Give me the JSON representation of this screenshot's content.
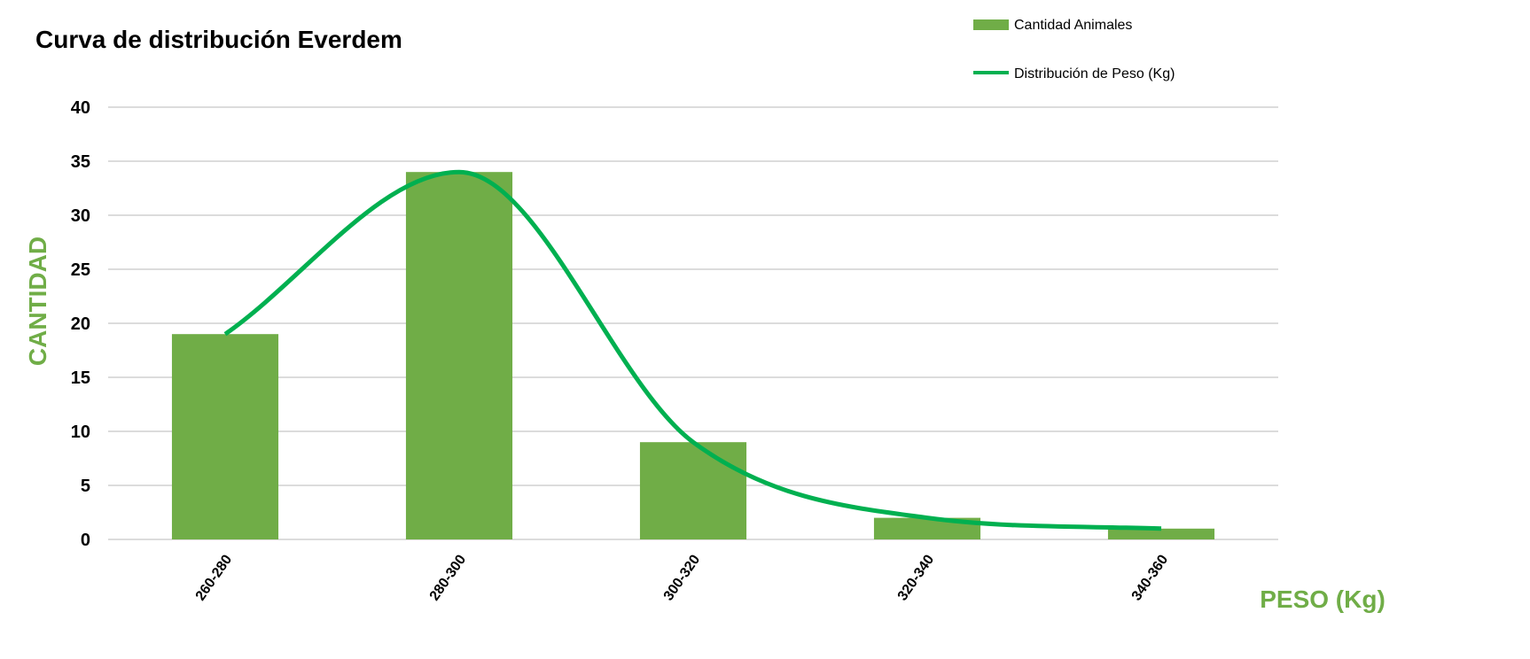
{
  "chart_data": {
    "type": "bar",
    "title": "Curva de distribución Everdem",
    "xlabel": "PESO (Kg)",
    "ylabel": "CANTIDAD",
    "categories": [
      "260-280",
      "280-300",
      "300-320",
      "320-340",
      "340-360"
    ],
    "ylim": [
      0,
      40
    ],
    "yticks": [
      0,
      5,
      10,
      15,
      20,
      25,
      30,
      35,
      40
    ],
    "grid": true,
    "legend_position": "top-right",
    "series": [
      {
        "name": "Cantidad Animales",
        "kind": "bar",
        "values": [
          19,
          34,
          9,
          2,
          1
        ],
        "color": "#70AD47"
      },
      {
        "name": "Distribución de Peso (Kg)",
        "kind": "smooth-line",
        "values": [
          19,
          34,
          9,
          2,
          1
        ],
        "color": "#00B050"
      }
    ],
    "colors": {
      "axis_label": "#70AD47",
      "grid": "#C8C8C8"
    }
  }
}
